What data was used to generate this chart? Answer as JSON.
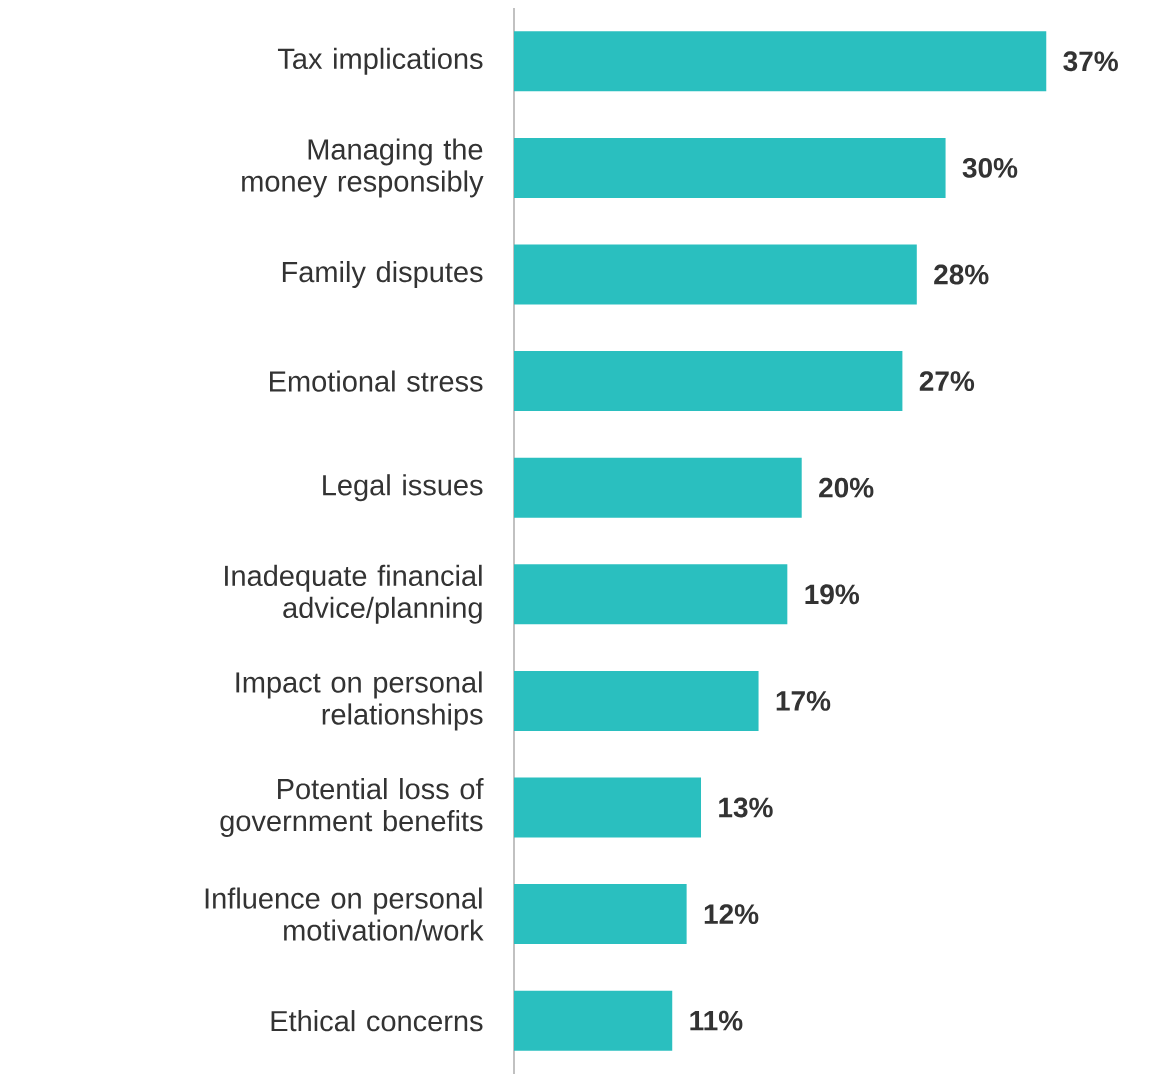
{
  "chart_data": {
    "type": "bar",
    "orientation": "horizontal",
    "color": "#2abfbf",
    "categories": [
      "Tax implications",
      "Managing the money responsibly",
      "Family disputes",
      "Emotional stress",
      "Legal issues",
      "Inadequate financial advice/planning",
      "Impact on personal relationships",
      "Potential loss of government benefits",
      "Influence on personal motivation/work",
      "Ethical concerns"
    ],
    "values": [
      37,
      30,
      28,
      27,
      20,
      19,
      17,
      13,
      12,
      11
    ],
    "value_labels": [
      "37%",
      "30%",
      "28%",
      "27%",
      "20%",
      "19%",
      "17%",
      "13%",
      "12%",
      "11%"
    ],
    "grid": false
  }
}
